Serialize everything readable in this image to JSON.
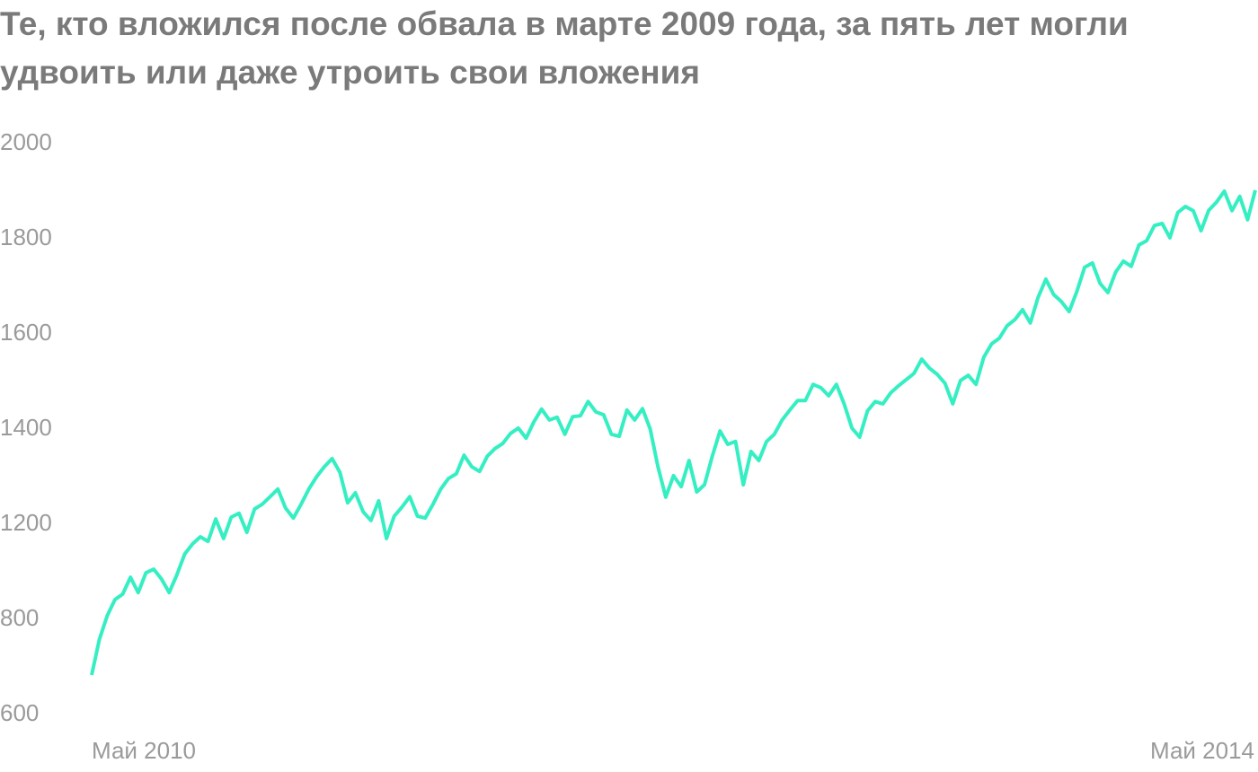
{
  "chart_data": {
    "type": "line",
    "title": "Те, кто вложился после обвала в марте 2009 года, за пять лет могли удвоить или даже утроить свои вложения",
    "categories": [
      "Май 2010",
      null,
      null,
      null,
      null,
      null,
      null,
      null,
      null,
      null,
      null,
      null,
      null,
      null,
      null,
      null,
      null,
      null,
      null,
      null,
      null,
      null,
      null,
      null,
      null,
      null,
      null,
      null,
      null,
      null,
      null,
      null,
      null,
      null,
      null,
      null,
      null,
      null,
      null,
      null,
      null,
      null,
      null,
      null,
      null,
      null,
      null,
      null,
      null,
      null,
      null,
      null,
      null,
      null,
      null,
      null,
      null,
      null,
      null,
      null,
      null,
      null,
      null,
      null,
      null,
      null,
      null,
      null,
      null,
      null,
      null,
      null,
      null,
      null,
      null,
      null,
      null,
      null,
      null,
      null,
      null,
      null,
      null,
      null,
      null,
      null,
      null,
      null,
      null,
      null,
      null,
      null,
      null,
      null,
      null,
      null,
      null,
      null,
      null,
      null,
      null,
      null,
      null,
      null,
      null,
      null,
      null,
      null,
      null,
      null,
      null,
      null,
      null,
      null,
      null,
      null,
      null,
      null,
      null,
      null,
      null,
      null,
      null,
      null,
      null,
      null,
      null,
      null,
      null,
      null,
      null,
      null,
      null,
      null,
      null,
      null,
      null,
      null,
      null,
      null,
      null,
      null,
      null,
      null,
      null,
      null,
      null,
      null,
      null,
      null,
      "Май 2014"
    ],
    "series": [
      {
        "color": "#35efc3",
        "values": [
          683,
          758,
          815,
          883,
          906,
          977,
          913,
          996,
          1011,
          970,
          913,
          989,
          1075,
          1117,
          1147,
          1128,
          1211,
          1140,
          1215,
          1223,
          1166,
          1232,
          1242,
          1258,
          1274,
          1234,
          1213,
          1242,
          1274,
          1300,
          1321,
          1338,
          1309,
          1245,
          1266,
          1226,
          1208,
          1249,
          1140,
          1217,
          1236,
          1258,
          1217,
          1213,
          1242,
          1274,
          1296,
          1306,
          1345,
          1321,
          1311,
          1343,
          1359,
          1370,
          1391,
          1402,
          1381,
          1415,
          1442,
          1419,
          1425,
          1389,
          1426,
          1428,
          1458,
          1436,
          1430,
          1389,
          1385,
          1440,
          1419,
          1443,
          1400,
          1321,
          1257,
          1302,
          1279,
          1334,
          1268,
          1283,
          1343,
          1396,
          1368,
          1374,
          1283,
          1353,
          1334,
          1374,
          1389,
          1419,
          1440,
          1460,
          1460,
          1494,
          1487,
          1470,
          1494,
          1453,
          1402,
          1383,
          1438,
          1458,
          1453,
          1476,
          1491,
          1504,
          1517,
          1547,
          1528,
          1515,
          1496,
          1453,
          1502,
          1513,
          1494,
          1551,
          1579,
          1591,
          1617,
          1630,
          1651,
          1623,
          1677,
          1715,
          1683,
          1668,
          1647,
          1689,
          1740,
          1749,
          1706,
          1687,
          1730,
          1753,
          1742,
          1787,
          1796,
          1828,
          1832,
          1802,
          1855,
          1868,
          1859,
          1817,
          1860,
          1877,
          1900,
          1859,
          1889,
          1840,
          1902
        ]
      }
    ],
    "yticks": [
      600,
      800,
      1200,
      1400,
      1600,
      1800,
      2000
    ]
  }
}
